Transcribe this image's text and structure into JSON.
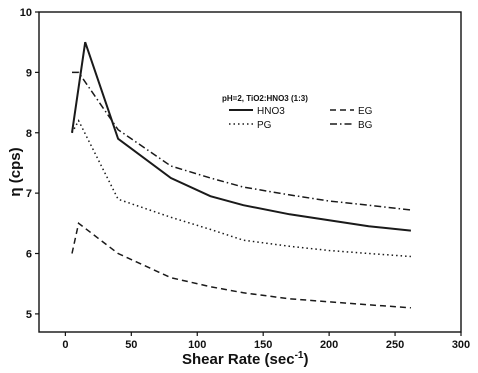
{
  "chart_data": {
    "type": "line",
    "title": "",
    "xlabel_main": "Shear Rate (sec",
    "xlabel_sup": "-1",
    "xlabel_close": ")",
    "ylabel": "η (cps)",
    "xlim": [
      -20,
      300
    ],
    "ylim": [
      4.7,
      10
    ],
    "xticks": [
      0,
      50,
      100,
      150,
      200,
      250,
      300
    ],
    "yticks": [
      5,
      6,
      7,
      8,
      9,
      10
    ],
    "legend_title": "pH=2, TiO2:HNO3 (1:3)",
    "legend_position": "upper-right",
    "grid": false,
    "series": [
      {
        "name": "HNO3",
        "style": "solid",
        "x": [
          5,
          15,
          40,
          80,
          110,
          135,
          170,
          200,
          230,
          262
        ],
        "y": [
          8.0,
          9.5,
          7.9,
          7.25,
          6.95,
          6.8,
          6.65,
          6.55,
          6.45,
          6.38
        ]
      },
      {
        "name": "EG",
        "style": "dashed",
        "x": [
          5,
          10,
          40,
          80,
          110,
          135,
          170,
          200,
          230,
          262
        ],
        "y": [
          6.0,
          6.5,
          6.0,
          5.6,
          5.45,
          5.35,
          5.25,
          5.2,
          5.15,
          5.1
        ]
      },
      {
        "name": "PG",
        "style": "dotted",
        "x": [
          5,
          10,
          40,
          80,
          110,
          135,
          170,
          200,
          230,
          262
        ],
        "y": [
          8.0,
          8.2,
          6.9,
          6.6,
          6.4,
          6.22,
          6.12,
          6.05,
          6.0,
          5.95
        ]
      },
      {
        "name": "BG",
        "style": "dashdot",
        "x": [
          5,
          10,
          40,
          80,
          110,
          135,
          170,
          200,
          230,
          262
        ],
        "y": [
          9.0,
          9.0,
          8.05,
          7.45,
          7.25,
          7.1,
          6.97,
          6.87,
          6.8,
          6.72
        ]
      }
    ]
  }
}
